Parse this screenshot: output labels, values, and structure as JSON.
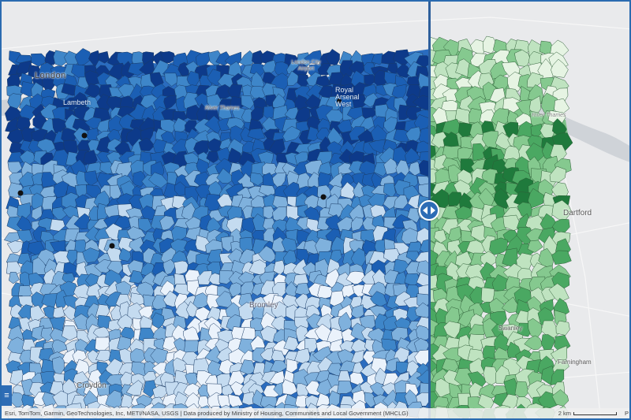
{
  "map": {
    "labels": {
      "london": "London",
      "lambeth": "Lambeth",
      "london_city_airport": "London City Airport",
      "royal_arsenal": "Royal Arsenal West",
      "river_thames_west": "River Thames",
      "river_thames_east": "River Thames",
      "bromley": "Bromley",
      "croydon": "Croydon",
      "dartford": "Dartford",
      "swanley": "Swanley",
      "farningham": "Farningham"
    },
    "colors": {
      "left_layer_ramp": [
        "#0d3a8a",
        "#1b5fb4",
        "#3e86c9",
        "#7fb1dd",
        "#c4dbf0",
        "#eaf2fb"
      ],
      "right_layer_ramp": [
        "#1f7a3c",
        "#4aa862",
        "#85c98f",
        "#bfe3c0",
        "#e6f4e3"
      ],
      "divider": "#2d5f9c"
    },
    "icons": {
      "swipe_handle": "left-right-arrows-icon",
      "menu": "menu-icon"
    }
  },
  "attribution": {
    "text": "Esri, TomTom, Garmin, GeoTechnologies, Inc, METI/NASA, USGS | Data produced by Ministry of Housing, Communities and Local Government (MHCLG)",
    "scale_label": "2 km",
    "powered": "P"
  },
  "controls": {
    "menu_glyph": "≡"
  }
}
